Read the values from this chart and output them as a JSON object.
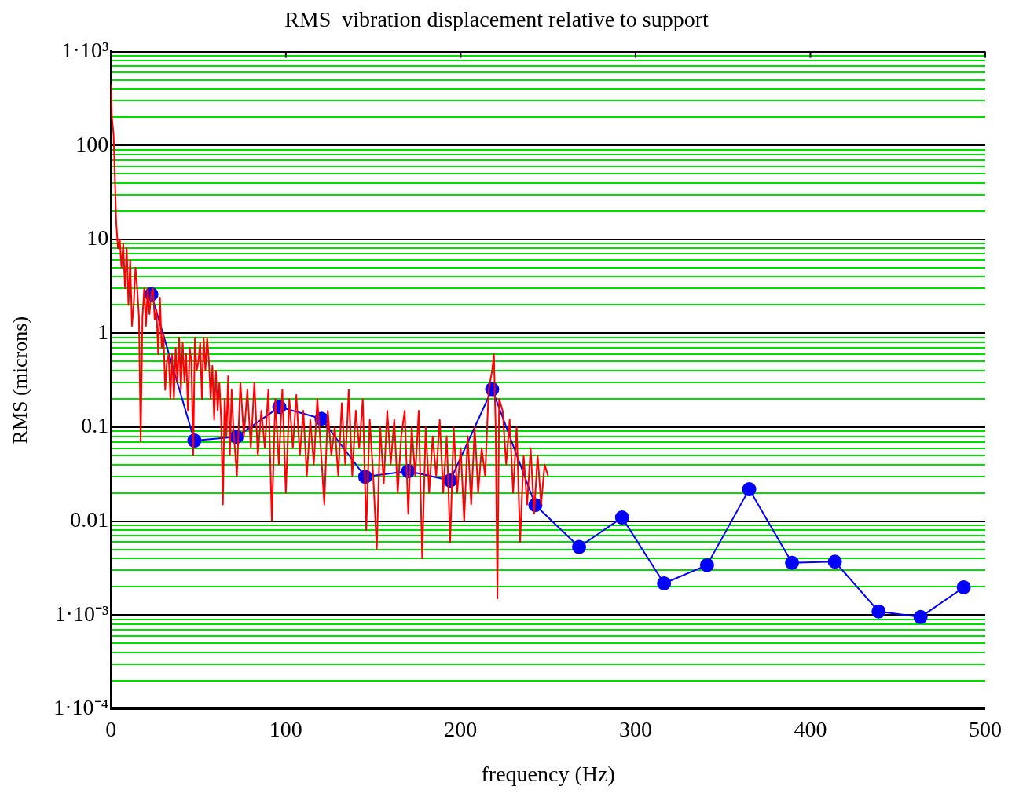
{
  "chart_data": {
    "type": "line",
    "title": "RMS  vibration displacement relative to support",
    "xlabel": "frequency (Hz)",
    "ylabel": "RMS (microns)",
    "log": "y",
    "grid": "y",
    "xlim": [
      0,
      500
    ],
    "xticks": [
      0,
      100,
      200,
      300,
      400,
      500
    ],
    "ylim": [
      0.0001,
      1000
    ],
    "yticks": [
      {
        "value": 0.0001,
        "label": "1·10⁻⁴"
      },
      {
        "value": 0.0002,
        "label": null
      },
      {
        "value": 0.0003,
        "label": null
      },
      {
        "value": 0.0004,
        "label": null
      },
      {
        "value": 0.0005,
        "label": null
      },
      {
        "value": 0.0006,
        "label": null
      },
      {
        "value": 0.0007,
        "label": null
      },
      {
        "value": 0.0008,
        "label": null
      },
      {
        "value": 0.0009,
        "label": null
      },
      {
        "value": 0.001,
        "label": "1·10⁻³"
      },
      {
        "value": 0.002,
        "label": null
      },
      {
        "value": 0.003,
        "label": null
      },
      {
        "value": 0.004,
        "label": null
      },
      {
        "value": 0.005,
        "label": null
      },
      {
        "value": 0.006,
        "label": null
      },
      {
        "value": 0.007,
        "label": null
      },
      {
        "value": 0.008,
        "label": null
      },
      {
        "value": 0.009,
        "label": null
      },
      0.01,
      {
        "value": 0.02,
        "label": null
      },
      {
        "value": 0.03,
        "label": null
      },
      {
        "value": 0.04,
        "label": null
      },
      {
        "value": 0.05,
        "label": null
      },
      {
        "value": 0.06,
        "label": null
      },
      {
        "value": 0.07,
        "label": null
      },
      {
        "value": 0.08,
        "label": null
      },
      {
        "value": 0.09,
        "label": null
      },
      0.1,
      {
        "value": 0.2,
        "label": null
      },
      {
        "value": 0.3,
        "label": null
      },
      {
        "value": 0.4,
        "label": null
      },
      {
        "value": 0.5,
        "label": null
      },
      {
        "value": 0.6,
        "label": null
      },
      {
        "value": 0.7,
        "label": null
      },
      {
        "value": 0.8,
        "label": null
      },
      {
        "value": 0.9,
        "label": null
      },
      1,
      {
        "value": 2,
        "label": null
      },
      {
        "value": 3,
        "label": null
      },
      {
        "value": 4,
        "label": null
      },
      {
        "value": 5,
        "label": null
      },
      {
        "value": 6,
        "label": null
      },
      {
        "value": 7,
        "label": null
      },
      {
        "value": 8,
        "label": null
      },
      {
        "value": 9,
        "label": null
      },
      10,
      {
        "value": 20,
        "label": null
      },
      {
        "value": 30,
        "label": null
      },
      {
        "value": 40,
        "label": null
      },
      {
        "value": 50,
        "label": null
      },
      {
        "value": 60,
        "label": null
      },
      {
        "value": 70,
        "label": null
      },
      {
        "value": 80,
        "label": null
      },
      {
        "value": 90,
        "label": null
      },
      100,
      {
        "value": 200,
        "label": null
      },
      {
        "value": 300,
        "label": null
      },
      {
        "value": 400,
        "label": null
      },
      {
        "value": 500,
        "label": null
      },
      {
        "value": 600,
        "label": null
      },
      {
        "value": 700,
        "label": null
      },
      {
        "value": 800,
        "label": null
      },
      {
        "value": 900,
        "label": null
      },
      {
        "value": 1000,
        "label": "1·10³"
      }
    ],
    "series": [
      {
        "color": "#ff0000",
        "marker": "none",
        "x": [
          0,
          0.5,
          1.5,
          3,
          4,
          5,
          6,
          7,
          8,
          9,
          10,
          11,
          12,
          13,
          14,
          15,
          16,
          17,
          18,
          19,
          20,
          21,
          22,
          23,
          24,
          25,
          26,
          27,
          28,
          29,
          30,
          31,
          32,
          33,
          34,
          35,
          36,
          37,
          38,
          39,
          40,
          41,
          42,
          43,
          44,
          45,
          46,
          47,
          48,
          49,
          50,
          51,
          52,
          53,
          54,
          55,
          56,
          57,
          58,
          59,
          60,
          61,
          62,
          63,
          64,
          65,
          66,
          67,
          68,
          69,
          70,
          72,
          74,
          76,
          78,
          80,
          82,
          84,
          86,
          88,
          90,
          92,
          94,
          96,
          98,
          100,
          102,
          104,
          106,
          108,
          110,
          112,
          114,
          116,
          118,
          120,
          122,
          124,
          126,
          128,
          130,
          132,
          134,
          136,
          138,
          140,
          142,
          144,
          146,
          148,
          150,
          152,
          154,
          156,
          158,
          160,
          162,
          164,
          166,
          168,
          170,
          172,
          174,
          176,
          178,
          180,
          182,
          184,
          186,
          188,
          190,
          192,
          194,
          196,
          198,
          200,
          202,
          204,
          206,
          208,
          210,
          212,
          214,
          216,
          218,
          219,
          220,
          221,
          222,
          224,
          226,
          228,
          230,
          232,
          234,
          236,
          238,
          240,
          242,
          244,
          246,
          248,
          250
        ],
        "values": [
          450,
          200,
          130,
          15,
          8,
          10,
          5,
          9,
          3,
          8,
          2,
          6,
          1.2,
          2,
          5,
          3,
          1.5,
          0.07,
          1.5,
          3,
          1.2,
          3,
          1.6,
          2.6,
          3,
          1.4,
          1.8,
          0.6,
          2.4,
          0.7,
          1,
          0.25,
          0.5,
          0.6,
          0.2,
          0.6,
          0.2,
          0.7,
          0.3,
          0.9,
          0.25,
          0.8,
          0.3,
          0.6,
          0.15,
          0.7,
          0.5,
          0.05,
          0.9,
          0.4,
          0.5,
          0.8,
          0.2,
          0.9,
          0.4,
          0.9,
          0.5,
          0.2,
          0.45,
          0.12,
          0.4,
          0.15,
          0.3,
          0.12,
          0.015,
          0.2,
          0.08,
          0.35,
          0.05,
          0.25,
          0.1,
          0.03,
          0.3,
          0.08,
          0.25,
          0.06,
          0.3,
          0.05,
          0.15,
          0.06,
          0.25,
          0.01,
          0.2,
          0.04,
          0.25,
          0.02,
          0.2,
          0.06,
          0.22,
          0.05,
          0.15,
          0.03,
          0.12,
          0.04,
          0.2,
          0.06,
          0.015,
          0.15,
          0.05,
          0.1,
          0.03,
          0.18,
          0.04,
          0.25,
          0.03,
          0.15,
          0.06,
          0.2,
          0.008,
          0.12,
          0.03,
          0.005,
          0.1,
          0.025,
          0.15,
          0.04,
          0.12,
          0.02,
          0.08,
          0.15,
          0.012,
          0.1,
          0.03,
          0.15,
          0.004,
          0.1,
          0.02,
          0.08,
          0.03,
          0.12,
          0.02,
          0.08,
          0.006,
          0.1,
          0.02,
          0.06,
          0.01,
          0.08,
          0.015,
          0.1,
          0.02,
          0.06,
          0.03,
          0.25,
          0.4,
          0.6,
          0.1,
          0.0015,
          0.2,
          0.15,
          0.04,
          0.12,
          0.02,
          0.1,
          0.006,
          0.05,
          0.015,
          0.06,
          0.012,
          0.05,
          0.015,
          0.04,
          0.03
        ]
      },
      {
        "color": "#0000ff",
        "marker": "circle",
        "x": [
          23.1,
          47.7,
          71.8,
          96.3,
          120.4,
          145.4,
          170,
          194,
          218,
          242.7,
          267.7,
          292.3,
          316.3,
          340.9,
          365,
          389.5,
          414,
          439,
          463,
          487.7
        ],
        "values": [
          2.6,
          0.072,
          0.079,
          0.164,
          0.123,
          0.0296,
          0.034,
          0.027,
          0.254,
          0.0148,
          0.0053,
          0.0109,
          0.00217,
          0.0034,
          0.0218,
          0.0036,
          0.0037,
          0.00109,
          0.00095,
          0.00197
        ]
      }
    ]
  }
}
